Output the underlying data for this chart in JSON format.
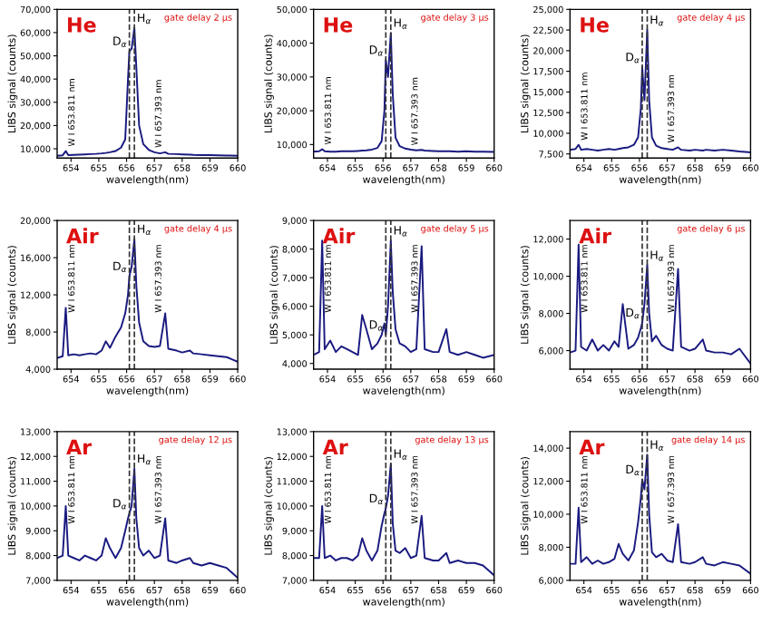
{
  "chart_data": [
    {
      "type": "line",
      "title": "He",
      "subtitle": "gate delay 2 µs",
      "xlabel": "wavelength(nm)",
      "ylabel": "LIBS signal (counts)",
      "xlim": [
        653.5,
        660
      ],
      "xticks": [
        654,
        655,
        656,
        657,
        658,
        659,
        660
      ],
      "ylim": [
        6000,
        70000
      ],
      "yticks": [
        {
          "value": 10000,
          "label": "10,000"
        },
        {
          "value": 20000,
          "label": "20,000"
        },
        {
          "value": 30000,
          "label": "30,000"
        },
        {
          "value": 40000,
          "label": "40,000"
        },
        {
          "value": 50000,
          "label": "50,000"
        },
        {
          "value": 60000,
          "label": "60,000"
        },
        {
          "value": 70000,
          "label": "70,000"
        }
      ],
      "x": [
        653.5,
        653.7,
        653.81,
        653.9,
        654.1,
        654.3,
        654.5,
        654.7,
        654.9,
        655.1,
        655.25,
        655.4,
        655.6,
        655.8,
        655.95,
        656.05,
        656.1,
        656.18,
        656.28,
        656.35,
        656.45,
        656.6,
        656.8,
        657.0,
        657.2,
        657.39,
        657.5,
        657.8,
        658.0,
        658.28,
        658.4,
        658.7,
        659.0,
        659.3,
        659.6,
        660.0
      ],
      "series": [
        {
          "color": "#1a1a80",
          "values": [
            7000,
            7200,
            9000,
            7300,
            7400,
            7500,
            7600,
            7700,
            7800,
            8000,
            8200,
            8500,
            9000,
            10500,
            14000,
            40000,
            52000,
            53000,
            62000,
            45000,
            20000,
            12000,
            9500,
            8500,
            8000,
            8500,
            7800,
            7700,
            7600,
            7500,
            7400,
            7300,
            7300,
            7200,
            7100,
            7000
          ]
        }
      ],
      "ref_lines": [
        {
          "axis": "x",
          "value": 656.1,
          "color": "#333333",
          "line_style": "dashed"
        },
        {
          "axis": "x",
          "value": 656.28,
          "color": "#333333",
          "line_style": "dashed"
        }
      ],
      "annotations": [
        {
          "text": "W I 653.811 nm",
          "x": 653.81,
          "y": 9000
        },
        {
          "text": "W I 657.393 nm",
          "x": 657.39,
          "y": 8500
        },
        {
          "text": "D$_{α}$",
          "x": 656.1,
          "y": 52000
        },
        {
          "text": "H$_{α}$",
          "x": 656.28,
          "y": 62000
        }
      ]
    },
    {
      "type": "line",
      "title": "He",
      "subtitle": "gate delay 3 µs",
      "xlabel": "wavelength(nm)",
      "ylabel": "LIBS signal (counts)",
      "xlim": [
        653.5,
        660
      ],
      "xticks": [
        654,
        655,
        656,
        657,
        658,
        659,
        660
      ],
      "ylim": [
        6000,
        50000
      ],
      "yticks": [
        {
          "value": 10000,
          "label": "10,000"
        },
        {
          "value": 20000,
          "label": "20,000"
        },
        {
          "value": 30000,
          "label": "30,000"
        },
        {
          "value": 40000,
          "label": "40,000"
        },
        {
          "value": 50000,
          "label": "50,000"
        }
      ],
      "x": [
        653.5,
        653.7,
        653.81,
        653.9,
        654.1,
        654.3,
        654.5,
        654.7,
        654.9,
        655.1,
        655.25,
        655.4,
        655.6,
        655.8,
        655.95,
        656.05,
        656.1,
        656.18,
        656.28,
        656.35,
        656.45,
        656.6,
        656.8,
        657.0,
        657.2,
        657.39,
        657.5,
        657.8,
        658.0,
        658.28,
        658.4,
        658.7,
        659.0,
        659.3,
        659.6,
        660.0
      ],
      "series": [
        {
          "color": "#1a1a80",
          "values": [
            7900,
            8000,
            8600,
            8000,
            7900,
            7900,
            8000,
            8000,
            8000,
            8100,
            8200,
            8300,
            8500,
            9000,
            11000,
            20000,
            35000,
            30000,
            43000,
            25000,
            12000,
            9500,
            8800,
            8500,
            8300,
            8400,
            8200,
            8100,
            8000,
            8000,
            8000,
            7900,
            8000,
            7900,
            7900,
            7800
          ]
        }
      ],
      "ref_lines": [
        {
          "axis": "x",
          "value": 656.1,
          "color": "#333333",
          "line_style": "dashed"
        },
        {
          "axis": "x",
          "value": 656.28,
          "color": "#333333",
          "line_style": "dashed"
        }
      ],
      "annotations": [
        {
          "text": "W I 653.811 nm",
          "x": 653.81,
          "y": 8600
        },
        {
          "text": "W I 657.393 nm",
          "x": 657.39,
          "y": 8400
        },
        {
          "text": "D$_{α}$",
          "x": 656.1,
          "y": 35000
        },
        {
          "text": "H$_{α}$",
          "x": 656.28,
          "y": 43000
        }
      ]
    },
    {
      "type": "line",
      "title": "He",
      "subtitle": "gate delay 4 µs",
      "xlabel": "wavelength(nm)",
      "ylabel": "LIBS signal (counts)",
      "xlim": [
        653.5,
        660
      ],
      "xticks": [
        654,
        655,
        656,
        657,
        658,
        659,
        660
      ],
      "ylim": [
        7000,
        25000
      ],
      "yticks": [
        {
          "value": 7500,
          "label": "7,500"
        },
        {
          "value": 10000,
          "label": "10,000"
        },
        {
          "value": 12500,
          "label": "12,500"
        },
        {
          "value": 15000,
          "label": "15,000"
        },
        {
          "value": 17500,
          "label": "17,500"
        },
        {
          "value": 20000,
          "label": "20,000"
        },
        {
          "value": 22500,
          "label": "22,500"
        },
        {
          "value": 25000,
          "label": "25,000"
        }
      ],
      "x": [
        653.5,
        653.7,
        653.81,
        653.9,
        654.1,
        654.3,
        654.5,
        654.7,
        654.9,
        655.1,
        655.25,
        655.4,
        655.6,
        655.8,
        655.95,
        656.05,
        656.1,
        656.18,
        656.28,
        656.35,
        656.45,
        656.6,
        656.8,
        657.0,
        657.2,
        657.39,
        657.5,
        657.8,
        658.0,
        658.28,
        658.4,
        658.7,
        659.0,
        659.3,
        659.6,
        660.0
      ],
      "series": [
        {
          "color": "#1a1a80",
          "values": [
            8000,
            8100,
            8600,
            8000,
            8100,
            8000,
            7900,
            8000,
            8100,
            8000,
            8100,
            8200,
            8300,
            8600,
            9500,
            13000,
            18000,
            14000,
            22500,
            14000,
            9500,
            8500,
            8200,
            8100,
            8000,
            8300,
            8000,
            7900,
            8000,
            7900,
            8000,
            7900,
            8000,
            7900,
            7800,
            7700
          ]
        }
      ],
      "ref_lines": [
        {
          "axis": "x",
          "value": 656.1,
          "color": "#333333",
          "line_style": "dashed"
        },
        {
          "axis": "x",
          "value": 656.28,
          "color": "#333333",
          "line_style": "dashed"
        }
      ],
      "annotations": [
        {
          "text": "W I 653.811 nm",
          "x": 653.81,
          "y": 8600
        },
        {
          "text": "W I 657.393 nm",
          "x": 657.39,
          "y": 8300
        },
        {
          "text": "D$_{α}$",
          "x": 656.1,
          "y": 18000
        },
        {
          "text": "H$_{α}$",
          "x": 656.28,
          "y": 22500
        }
      ]
    },
    {
      "type": "line",
      "title": "Air",
      "subtitle": "gate delay 4 µs",
      "xlabel": "wavelength(nm)",
      "ylabel": "LIBS signal (counts)",
      "xlim": [
        653.5,
        660
      ],
      "xticks": [
        654,
        655,
        656,
        657,
        658,
        659,
        660
      ],
      "ylim": [
        4000,
        20000
      ],
      "yticks": [
        {
          "value": 4000,
          "label": "4,000"
        },
        {
          "value": 8000,
          "label": "8,000"
        },
        {
          "value": 12000,
          "label": "12,000"
        },
        {
          "value": 16000,
          "label": "16,000"
        },
        {
          "value": 20000,
          "label": "20,000"
        }
      ],
      "x": [
        653.5,
        653.7,
        653.81,
        653.9,
        654.1,
        654.3,
        654.5,
        654.7,
        654.9,
        655.1,
        655.25,
        655.4,
        655.6,
        655.8,
        655.95,
        656.05,
        656.1,
        656.18,
        656.28,
        656.35,
        656.45,
        656.6,
        656.8,
        657.0,
        657.2,
        657.39,
        657.5,
        657.8,
        658.0,
        658.28,
        658.4,
        658.7,
        659.0,
        659.3,
        659.6,
        660.0
      ],
      "series": [
        {
          "color": "#1a1a80",
          "values": [
            5200,
            5400,
            10600,
            5500,
            5600,
            5500,
            5600,
            5700,
            5600,
            6000,
            7000,
            6300,
            7500,
            8500,
            10000,
            12000,
            14000,
            15000,
            18000,
            13000,
            9000,
            7000,
            6500,
            6400,
            6500,
            10000,
            6200,
            6000,
            5800,
            6000,
            5700,
            5600,
            5500,
            5400,
            5300,
            4800
          ]
        }
      ],
      "ref_lines": [
        {
          "axis": "x",
          "value": 656.1,
          "color": "#333333",
          "line_style": "dashed"
        },
        {
          "axis": "x",
          "value": 656.28,
          "color": "#333333",
          "line_style": "dashed"
        }
      ],
      "annotations": [
        {
          "text": "W I 653.811 nm",
          "x": 653.81,
          "y": 10600
        },
        {
          "text": "W I 657.393 nm",
          "x": 657.39,
          "y": 10000
        },
        {
          "text": "D$_{α}$",
          "x": 656.1,
          "y": 14000
        },
        {
          "text": "H$_{α}$",
          "x": 656.28,
          "y": 18000
        }
      ]
    },
    {
      "type": "line",
      "title": "Air",
      "subtitle": "gate delay 5 µs",
      "xlabel": "wavelength(nm)",
      "ylabel": "LIBS signal (counts)",
      "xlim": [
        653.5,
        660
      ],
      "xticks": [
        654,
        655,
        656,
        657,
        658,
        659,
        660
      ],
      "ylim": [
        3800,
        9000
      ],
      "yticks": [
        {
          "value": 4000,
          "label": "4,000"
        },
        {
          "value": 5000,
          "label": "5,000"
        },
        {
          "value": 6000,
          "label": "6,000"
        },
        {
          "value": 7000,
          "label": "7,000"
        },
        {
          "value": 8000,
          "label": "8,000"
        },
        {
          "value": 9000,
          "label": "9,000"
        }
      ],
      "x": [
        653.5,
        653.7,
        653.81,
        653.9,
        654.1,
        654.3,
        654.5,
        654.7,
        654.9,
        655.1,
        655.25,
        655.4,
        655.6,
        655.8,
        655.95,
        656.05,
        656.1,
        656.18,
        656.28,
        656.35,
        656.45,
        656.6,
        656.8,
        657.0,
        657.2,
        657.39,
        657.5,
        657.8,
        658.0,
        658.28,
        658.4,
        658.7,
        659.0,
        659.3,
        659.6,
        660.0
      ],
      "series": [
        {
          "color": "#1a1a80",
          "values": [
            4300,
            4400,
            8300,
            4500,
            4800,
            4400,
            4600,
            4500,
            4400,
            4300,
            5700,
            5200,
            4500,
            4700,
            5000,
            5400,
            5000,
            6000,
            8300,
            6500,
            5200,
            4700,
            4600,
            4400,
            4500,
            8100,
            4500,
            4400,
            4400,
            5200,
            4400,
            4300,
            4400,
            4300,
            4200,
            4300
          ]
        }
      ],
      "ref_lines": [
        {
          "axis": "x",
          "value": 656.1,
          "color": "#333333",
          "line_style": "dashed"
        },
        {
          "axis": "x",
          "value": 656.28,
          "color": "#333333",
          "line_style": "dashed"
        }
      ],
      "annotations": [
        {
          "text": "W I 653.811 nm",
          "x": 653.81,
          "y": 8300
        },
        {
          "text": "W I 657.393 nm",
          "x": 657.39,
          "y": 8100
        },
        {
          "text": "D$_{α}$",
          "x": 656.1,
          "y": 5000
        },
        {
          "text": "H$_{α}$",
          "x": 656.28,
          "y": 8300
        }
      ]
    },
    {
      "type": "line",
      "title": "Air",
      "subtitle": "gate delay 6 µs",
      "xlabel": "wavelength(nm)",
      "ylabel": "LIBS signal (counts)",
      "xlim": [
        653.5,
        660
      ],
      "xticks": [
        654,
        655,
        656,
        657,
        658,
        659,
        660
      ],
      "ylim": [
        5000,
        13000
      ],
      "yticks": [
        {
          "value": 6000,
          "label": "6,000"
        },
        {
          "value": 8000,
          "label": "8,000"
        },
        {
          "value": 10000,
          "label": "10,000"
        },
        {
          "value": 12000,
          "label": "12,000"
        }
      ],
      "x": [
        653.5,
        653.7,
        653.81,
        653.9,
        654.1,
        654.3,
        654.5,
        654.7,
        654.9,
        655.1,
        655.25,
        655.4,
        655.6,
        655.8,
        655.95,
        656.05,
        656.1,
        656.18,
        656.28,
        656.35,
        656.45,
        656.6,
        656.8,
        657.0,
        657.2,
        657.39,
        657.5,
        657.8,
        658.0,
        658.28,
        658.4,
        658.7,
        659.0,
        659.3,
        659.6,
        660.0
      ],
      "series": [
        {
          "color": "#1a1a80",
          "values": [
            5900,
            6000,
            11700,
            6200,
            6000,
            6600,
            6000,
            6300,
            6000,
            6500,
            6200,
            8500,
            6100,
            6300,
            6700,
            7200,
            7500,
            8500,
            10600,
            8000,
            6500,
            6800,
            6300,
            6100,
            6000,
            10400,
            6200,
            6000,
            6100,
            6600,
            6000,
            5900,
            5900,
            5800,
            6100,
            5300
          ]
        }
      ],
      "ref_lines": [
        {
          "axis": "x",
          "value": 656.1,
          "color": "#333333",
          "line_style": "dashed"
        },
        {
          "axis": "x",
          "value": 656.28,
          "color": "#333333",
          "line_style": "dashed"
        }
      ],
      "annotations": [
        {
          "text": "W I 653.811 nm",
          "x": 653.81,
          "y": 11700
        },
        {
          "text": "W I 657.393 nm",
          "x": 657.39,
          "y": 10400
        },
        {
          "text": "D$_{α}$",
          "x": 656.1,
          "y": 7500
        },
        {
          "text": "H$_{α}$",
          "x": 656.28,
          "y": 10600
        }
      ]
    },
    {
      "type": "line",
      "title": "Ar",
      "subtitle": "gate delay 12 µs",
      "xlabel": "wavelength(nm)",
      "ylabel": "LIBS signal (counts)",
      "xlim": [
        653.5,
        660
      ],
      "xticks": [
        654,
        655,
        656,
        657,
        658,
        659,
        660
      ],
      "ylim": [
        7000,
        13000
      ],
      "yticks": [
        {
          "value": 7000,
          "label": "7,000"
        },
        {
          "value": 8000,
          "label": "8,000"
        },
        {
          "value": 9000,
          "label": "9,000"
        },
        {
          "value": 10000,
          "label": "10,000"
        },
        {
          "value": 11000,
          "label": "11,000"
        },
        {
          "value": 12000,
          "label": "12,000"
        },
        {
          "value": 13000,
          "label": "13,000"
        }
      ],
      "x": [
        653.5,
        653.7,
        653.81,
        653.9,
        654.1,
        654.3,
        654.5,
        654.7,
        654.9,
        655.1,
        655.25,
        655.4,
        655.6,
        655.8,
        655.95,
        656.05,
        656.1,
        656.18,
        656.28,
        656.35,
        656.45,
        656.6,
        656.8,
        657.0,
        657.2,
        657.39,
        657.5,
        657.8,
        658.0,
        658.28,
        658.4,
        658.7,
        659.0,
        659.3,
        659.6,
        660.0
      ],
      "series": [
        {
          "color": "#1a1a80",
          "values": [
            7900,
            8000,
            10000,
            8000,
            7900,
            7800,
            8000,
            7900,
            7800,
            8000,
            8700,
            8300,
            7900,
            8300,
            9000,
            9500,
            9700,
            10000,
            11500,
            9500,
            8300,
            8000,
            8200,
            7900,
            8000,
            9500,
            7800,
            7700,
            7800,
            7900,
            7700,
            7600,
            7700,
            7600,
            7500,
            7100
          ]
        }
      ],
      "ref_lines": [
        {
          "axis": "x",
          "value": 656.1,
          "color": "#333333",
          "line_style": "dashed"
        },
        {
          "axis": "x",
          "value": 656.28,
          "color": "#333333",
          "line_style": "dashed"
        }
      ],
      "annotations": [
        {
          "text": "W I 653.811 nm",
          "x": 653.81,
          "y": 10000
        },
        {
          "text": "W I 657.393 nm",
          "x": 657.39,
          "y": 9500
        },
        {
          "text": "D$_{α}$",
          "x": 656.1,
          "y": 9700
        },
        {
          "text": "H$_{α}$",
          "x": 656.28,
          "y": 11500
        }
      ]
    },
    {
      "type": "line",
      "title": "Ar",
      "subtitle": "gate delay 13 µs",
      "xlabel": "wavelength(nm)",
      "ylabel": "LIBS signal (counts)",
      "xlim": [
        653.5,
        660
      ],
      "xticks": [
        654,
        655,
        656,
        657,
        658,
        659,
        660
      ],
      "ylim": [
        7000,
        13000
      ],
      "yticks": [
        {
          "value": 7000,
          "label": "7,000"
        },
        {
          "value": 8000,
          "label": "8,000"
        },
        {
          "value": 9000,
          "label": "9,000"
        },
        {
          "value": 10000,
          "label": "10,000"
        },
        {
          "value": 11000,
          "label": "11,000"
        },
        {
          "value": 12000,
          "label": "12,000"
        },
        {
          "value": 13000,
          "label": "13,000"
        }
      ],
      "x": [
        653.5,
        653.7,
        653.81,
        653.9,
        654.1,
        654.3,
        654.5,
        654.7,
        654.9,
        655.1,
        655.25,
        655.4,
        655.6,
        655.8,
        655.95,
        656.05,
        656.1,
        656.18,
        656.28,
        656.35,
        656.45,
        656.6,
        656.8,
        657.0,
        657.2,
        657.39,
        657.5,
        657.8,
        658.0,
        658.28,
        658.4,
        658.7,
        659.0,
        659.3,
        659.6,
        660.0
      ],
      "series": [
        {
          "color": "#1a1a80",
          "values": [
            7900,
            7900,
            10000,
            7900,
            8000,
            7800,
            7900,
            7900,
            7800,
            8000,
            8700,
            8200,
            7800,
            8200,
            9200,
            9700,
            9900,
            10400,
            11700,
            9300,
            8200,
            8100,
            8300,
            7900,
            8000,
            9600,
            7900,
            7800,
            7800,
            8100,
            7700,
            7800,
            7700,
            7700,
            7600,
            7200
          ]
        }
      ],
      "ref_lines": [
        {
          "axis": "x",
          "value": 656.1,
          "color": "#333333",
          "line_style": "dashed"
        },
        {
          "axis": "x",
          "value": 656.28,
          "color": "#333333",
          "line_style": "dashed"
        }
      ],
      "annotations": [
        {
          "text": "W I 653.811 nm",
          "x": 653.81,
          "y": 10000
        },
        {
          "text": "W I 657.393 nm",
          "x": 657.39,
          "y": 9600
        },
        {
          "text": "D$_{α}$",
          "x": 656.1,
          "y": 9900
        },
        {
          "text": "H$_{α}$",
          "x": 656.28,
          "y": 11700
        }
      ]
    },
    {
      "type": "line",
      "title": "Ar",
      "subtitle": "gate delay 14 µs",
      "xlabel": "wavelength(nm)",
      "ylabel": "LIBS signal (counts)",
      "xlim": [
        653.5,
        660
      ],
      "xticks": [
        654,
        655,
        656,
        657,
        658,
        659,
        660
      ],
      "ylim": [
        6000,
        15000
      ],
      "yticks": [
        {
          "value": 6000,
          "label": "6,000"
        },
        {
          "value": 8000,
          "label": "8,000"
        },
        {
          "value": 10000,
          "label": "10,000"
        },
        {
          "value": 12000,
          "label": "12,000"
        },
        {
          "value": 14000,
          "label": "14,000"
        }
      ],
      "x": [
        653.5,
        653.7,
        653.81,
        653.9,
        654.1,
        654.3,
        654.5,
        654.7,
        654.9,
        655.1,
        655.25,
        655.4,
        655.6,
        655.8,
        655.95,
        656.05,
        656.1,
        656.18,
        656.28,
        656.35,
        656.45,
        656.6,
        656.8,
        657.0,
        657.2,
        657.39,
        657.5,
        657.8,
        658.0,
        658.28,
        658.4,
        658.7,
        659.0,
        659.3,
        659.6,
        660.0
      ],
      "series": [
        {
          "color": "#1a1a80",
          "values": [
            7000,
            7000,
            10400,
            7100,
            7400,
            7000,
            7200,
            7000,
            7100,
            7300,
            8200,
            7600,
            7200,
            7800,
            9500,
            11000,
            12100,
            11500,
            13600,
            10000,
            7700,
            7400,
            7600,
            7200,
            7100,
            9400,
            7100,
            7000,
            7100,
            7400,
            7000,
            6900,
            7100,
            7000,
            6900,
            6400
          ]
        }
      ],
      "ref_lines": [
        {
          "axis": "x",
          "value": 656.1,
          "color": "#333333",
          "line_style": "dashed"
        },
        {
          "axis": "x",
          "value": 656.28,
          "color": "#333333",
          "line_style": "dashed"
        }
      ],
      "annotations": [
        {
          "text": "W I 653.811 nm",
          "x": 653.81,
          "y": 10400
        },
        {
          "text": "W I 657.393 nm",
          "x": 657.39,
          "y": 9400
        },
        {
          "text": "D$_{α}$",
          "x": 656.1,
          "y": 12100
        },
        {
          "text": "H$_{α}$",
          "x": 656.28,
          "y": 13600
        }
      ]
    }
  ]
}
